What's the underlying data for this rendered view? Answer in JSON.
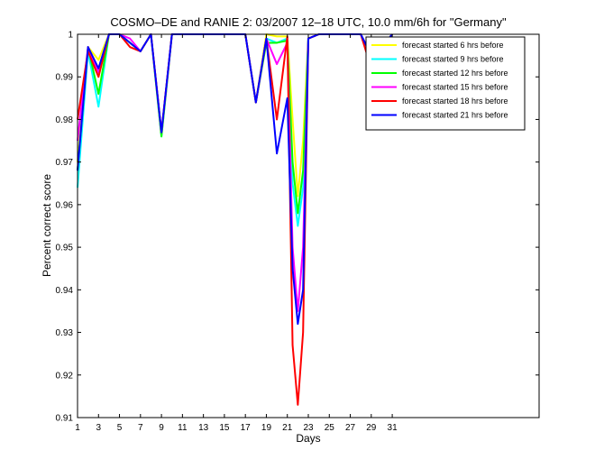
{
  "chart_data": {
    "type": "line",
    "title": "COSMO–DE and RANIE 2: 03/2007 12–18 UTC, 10.0 mm/6h for \"Germany\"",
    "xlabel": "Days",
    "ylabel": "Percent correct score",
    "xlim": [
      1,
      45
    ],
    "ylim": [
      0.91,
      1.0
    ],
    "xticks": [
      1,
      3,
      5,
      7,
      9,
      11,
      13,
      15,
      17,
      19,
      21,
      23,
      25,
      27,
      29,
      31
    ],
    "xtick_labels": [
      "1",
      "3",
      "5",
      "7",
      "9",
      "11",
      "13",
      "15",
      "17",
      "19",
      "21",
      "23",
      "25",
      "27",
      "29",
      "31"
    ],
    "yticks": [
      0.91,
      0.92,
      0.93,
      0.94,
      0.95,
      0.96,
      0.97,
      0.98,
      0.99,
      1.0
    ],
    "ytick_labels": [
      "0.91",
      "0.92",
      "0.93",
      "0.94",
      "0.95",
      "0.96",
      "0.97",
      "0.98",
      "0.99",
      "1"
    ],
    "grid": false,
    "legend_position": "top-right",
    "x": [
      1,
      2,
      3,
      4,
      5,
      6,
      7,
      8,
      9,
      10,
      11,
      12,
      13,
      14,
      15,
      16,
      17,
      18,
      19,
      20,
      21,
      21.5,
      22,
      22.5,
      23,
      24,
      25,
      26,
      27,
      28,
      29,
      30,
      31
    ],
    "series": [
      {
        "name": "forecast started 6 hrs before",
        "color": "#ffff00",
        "values": [
          0.97,
          0.997,
          0.994,
          1.0,
          1.0,
          0.998,
          0.996,
          1.0,
          0.977,
          1.0,
          1.0,
          1.0,
          1.0,
          1.0,
          1.0,
          1.0,
          1.0,
          0.984,
          1.0,
          0.9995,
          0.9995,
          0.98,
          0.962,
          0.975,
          0.999,
          1.0,
          1.0,
          1.0,
          1.0,
          1.0,
          0.995,
          0.997,
          1.0
        ]
      },
      {
        "name": "forecast started 9 hrs before",
        "color": "#00ffff",
        "values": [
          0.964,
          0.996,
          0.983,
          1.0,
          1.0,
          0.998,
          0.996,
          1.0,
          0.976,
          1.0,
          1.0,
          1.0,
          1.0,
          1.0,
          1.0,
          1.0,
          1.0,
          0.984,
          0.999,
          0.998,
          0.999,
          0.965,
          0.955,
          0.964,
          0.999,
          1.0,
          1.0,
          1.0,
          1.0,
          1.0,
          0.995,
          0.997,
          1.0
        ]
      },
      {
        "name": "forecast started 12 hrs before",
        "color": "#00ff00",
        "values": [
          0.968,
          0.997,
          0.986,
          1.0,
          1.0,
          0.998,
          0.996,
          1.0,
          0.976,
          1.0,
          1.0,
          1.0,
          1.0,
          1.0,
          1.0,
          1.0,
          1.0,
          0.984,
          0.998,
          0.998,
          0.9985,
          0.97,
          0.958,
          0.968,
          0.999,
          1.0,
          1.0,
          1.0,
          1.0,
          1.0,
          0.995,
          0.997,
          1.0
        ]
      },
      {
        "name": "forecast started 15 hrs before",
        "color": "#ff00ff",
        "values": [
          0.975,
          0.997,
          0.991,
          1.0,
          1.0,
          0.999,
          0.996,
          1.0,
          0.977,
          1.0,
          1.0,
          1.0,
          1.0,
          1.0,
          1.0,
          1.0,
          1.0,
          0.984,
          0.999,
          0.993,
          0.998,
          0.95,
          0.935,
          0.95,
          0.999,
          1.0,
          1.0,
          1.0,
          1.0,
          1.0,
          0.995,
          0.997,
          1.0
        ]
      },
      {
        "name": "forecast started 18 hrs before",
        "color": "#ff0000",
        "values": [
          0.98,
          0.996,
          0.99,
          1.0,
          1.0,
          0.997,
          0.996,
          1.0,
          0.977,
          1.0,
          1.0,
          1.0,
          1.0,
          1.0,
          1.0,
          1.0,
          1.0,
          0.984,
          0.999,
          0.98,
          0.9995,
          0.927,
          0.913,
          0.93,
          0.999,
          1.0,
          1.0,
          1.0,
          1.0,
          1.0,
          0.992,
          0.996,
          1.0
        ]
      },
      {
        "name": "forecast started 21 hrs before",
        "color": "#0000ff",
        "values": [
          0.968,
          0.997,
          0.992,
          1.0,
          1.0,
          0.998,
          0.996,
          1.0,
          0.977,
          1.0,
          1.0,
          1.0,
          1.0,
          1.0,
          1.0,
          1.0,
          1.0,
          0.984,
          0.999,
          0.972,
          0.985,
          0.945,
          0.932,
          0.94,
          0.999,
          1.0,
          1.0,
          1.0,
          1.0,
          1.0,
          0.995,
          0.997,
          1.0
        ]
      }
    ]
  }
}
